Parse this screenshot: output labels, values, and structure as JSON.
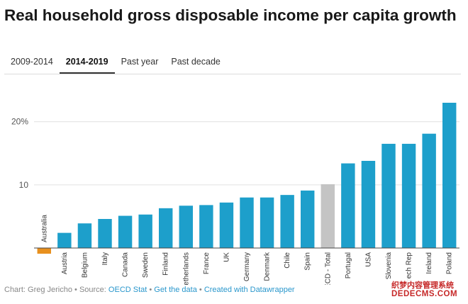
{
  "title": "Real household gross disposable income per capita growth",
  "tabs": [
    {
      "label": "2009-2014",
      "active": false
    },
    {
      "label": "2014-2019",
      "active": true
    },
    {
      "label": "Past year",
      "active": false
    },
    {
      "label": "Past decade",
      "active": false
    }
  ],
  "footer": {
    "prefix": "Chart: Greg Jericho • Source: ",
    "source_link": "OECD Stat",
    "sep1": " • ",
    "data_link": "Get the data",
    "sep2": " • ",
    "created_link": "Created with Datawrapper"
  },
  "watermark": {
    "line1": "织梦内容管理系统",
    "line2": "DEDECMS.COM"
  },
  "colors": {
    "default": "#1d9fcb",
    "highlight": "#e8901e",
    "oecd": "#c4c4c4"
  },
  "chart_data": {
    "type": "bar",
    "title": "Real household gross disposable income per capita growth",
    "xlabel": "",
    "ylabel": "",
    "ylim": [
      0,
      23
    ],
    "yticks": [
      10,
      20
    ],
    "ytick_labels": [
      "10",
      "20%"
    ],
    "grid": true,
    "categories": [
      "Australia",
      "Austria",
      "Belgium",
      "Italy",
      "Canada",
      "Sweden",
      "Finland",
      "Netherlands",
      "France",
      "UK",
      "Germany",
      "Denmark",
      "Chile",
      "Spain",
      "OECD - Total",
      "Portugal",
      "USA",
      "Slovenia",
      "Czech Rep",
      "Ireland",
      "Poland"
    ],
    "values": [
      -0.3,
      2.4,
      3.9,
      4.6,
      5.1,
      5.3,
      6.3,
      6.7,
      6.8,
      7.2,
      8.0,
      8.0,
      8.4,
      9.1,
      10.1,
      13.4,
      13.8,
      16.5,
      16.5,
      18.1,
      23.0
    ],
    "bar_colors": [
      "#e8901e",
      "#1d9fcb",
      "#1d9fcb",
      "#1d9fcb",
      "#1d9fcb",
      "#1d9fcb",
      "#1d9fcb",
      "#1d9fcb",
      "#1d9fcb",
      "#1d9fcb",
      "#1d9fcb",
      "#1d9fcb",
      "#1d9fcb",
      "#1d9fcb",
      "#c4c4c4",
      "#1d9fcb",
      "#1d9fcb",
      "#1d9fcb",
      "#1d9fcb",
      "#1d9fcb",
      "#1d9fcb"
    ]
  }
}
